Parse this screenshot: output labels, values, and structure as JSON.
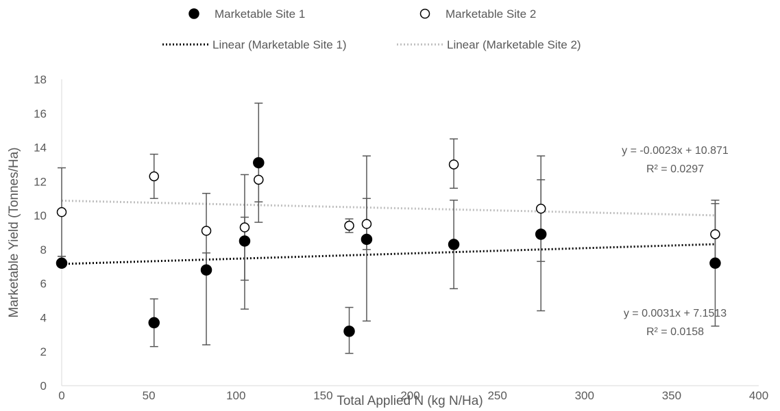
{
  "chart_data": {
    "type": "scatter",
    "title": "",
    "xlabel": "Total Applied N (kg N/Ha)",
    "ylabel": "Marketable Yield (Tonnes/Ha)",
    "xlim": [
      0,
      400
    ],
    "ylim": [
      0,
      18
    ],
    "xticks": [
      "0",
      "50",
      "100",
      "150",
      "200",
      "250",
      "300",
      "350",
      "400"
    ],
    "yticks": [
      "0",
      "2",
      "4",
      "6",
      "8",
      "10",
      "12",
      "14",
      "16",
      "18"
    ],
    "grid": false,
    "legend_position": "top",
    "series": [
      {
        "name": "Marketable Site 1",
        "marker": "filled-circle",
        "color": "#000000",
        "points": [
          {
            "x": 0,
            "y": 7.2,
            "err_low": 7.0,
            "err_high": 7.6
          },
          {
            "x": 53,
            "y": 3.7,
            "err_low": 2.3,
            "err_high": 5.1
          },
          {
            "x": 83,
            "y": 6.8,
            "err_low": 2.4,
            "err_high": 7.8
          },
          {
            "x": 105,
            "y": 8.5,
            "err_low": 4.5,
            "err_high": 9.9
          },
          {
            "x": 113,
            "y": 13.1,
            "err_low": 9.6,
            "err_high": 16.6
          },
          {
            "x": 165,
            "y": 3.2,
            "err_low": 1.9,
            "err_high": 4.6
          },
          {
            "x": 175,
            "y": 8.6,
            "err_low": 3.8,
            "err_high": 11.0
          },
          {
            "x": 225,
            "y": 8.3,
            "err_low": 5.7,
            "err_high": 10.9
          },
          {
            "x": 275,
            "y": 8.9,
            "err_low": 4.4,
            "err_high": 12.1
          },
          {
            "x": 375,
            "y": 7.2,
            "err_low": 3.5,
            "err_high": 10.9
          }
        ]
      },
      {
        "name": "Marketable Site 2",
        "marker": "open-circle",
        "color": "#000000",
        "points": [
          {
            "x": 0,
            "y": 10.2,
            "err_low": 7.6,
            "err_high": 12.8
          },
          {
            "x": 53,
            "y": 12.3,
            "err_low": 11.0,
            "err_high": 13.6
          },
          {
            "x": 83,
            "y": 9.1,
            "err_low": 6.9,
            "err_high": 11.3
          },
          {
            "x": 105,
            "y": 9.3,
            "err_low": 6.2,
            "err_high": 12.4
          },
          {
            "x": 113,
            "y": 12.1,
            "err_low": 10.8,
            "err_high": 13.3
          },
          {
            "x": 165,
            "y": 9.4,
            "err_low": 9.0,
            "err_high": 9.8
          },
          {
            "x": 175,
            "y": 9.5,
            "err_low": 8.0,
            "err_high": 13.5
          },
          {
            "x": 225,
            "y": 13.0,
            "err_low": 11.6,
            "err_high": 14.5
          },
          {
            "x": 275,
            "y": 10.4,
            "err_low": 7.3,
            "err_high": 13.5
          },
          {
            "x": 375,
            "y": 8.9,
            "err_low": 7.1,
            "err_high": 10.7
          }
        ]
      }
    ],
    "trendlines": [
      {
        "name": "Linear (Marketable Site 1)",
        "slope": 0.0031,
        "intercept": 7.1513,
        "color": "#000000",
        "style": "dotted",
        "equation": "y = 0.0031x + 7.1513",
        "r2": "R² = 0.0158"
      },
      {
        "name": "Linear (Marketable Site 2)",
        "slope": -0.0023,
        "intercept": 10.871,
        "color": "#bfbfbf",
        "style": "dotted",
        "equation": "y = -0.0023x + 10.871",
        "r2": "R² = 0.0297"
      }
    ]
  }
}
